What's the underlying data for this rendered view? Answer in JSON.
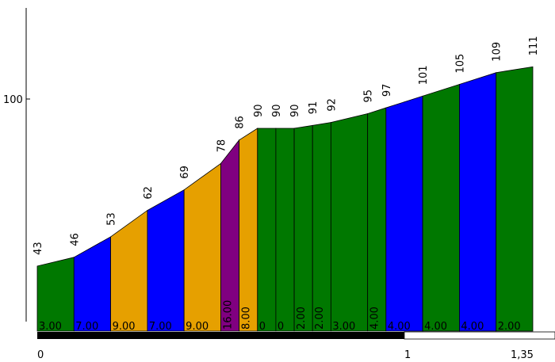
{
  "chart_data": {
    "type": "area",
    "x_start": 0,
    "x_end": 1.35,
    "y_tick": 100,
    "x_ticks": [
      {
        "value": 0,
        "label": "0"
      },
      {
        "value": 1,
        "label": "1"
      },
      {
        "value": 1.35,
        "label": "1,35"
      }
    ],
    "points": [
      {
        "x": 0.0,
        "y": 43,
        "label": "43"
      },
      {
        "x": 0.1,
        "y": 46,
        "label": "46"
      },
      {
        "x": 0.2,
        "y": 53,
        "label": "53"
      },
      {
        "x": 0.3,
        "y": 62,
        "label": "62"
      },
      {
        "x": 0.4,
        "y": 69,
        "label": "69"
      },
      {
        "x": 0.5,
        "y": 78,
        "label": "78"
      },
      {
        "x": 0.55,
        "y": 86,
        "label": "86"
      },
      {
        "x": 0.6,
        "y": 90,
        "label": "90"
      },
      {
        "x": 0.65,
        "y": 90,
        "label": "90"
      },
      {
        "x": 0.7,
        "y": 90,
        "label": "90"
      },
      {
        "x": 0.75,
        "y": 91,
        "label": "91"
      },
      {
        "x": 0.8,
        "y": 92,
        "label": "92"
      },
      {
        "x": 0.9,
        "y": 95,
        "label": "95"
      },
      {
        "x": 0.95,
        "y": 97,
        "label": "97"
      },
      {
        "x": 1.05,
        "y": 101,
        "label": "101"
      },
      {
        "x": 1.15,
        "y": 105,
        "label": "105"
      },
      {
        "x": 1.25,
        "y": 109,
        "label": "109"
      },
      {
        "x": 1.35,
        "y": 111,
        "label": "111"
      }
    ],
    "segments": [
      {
        "gradient": "3.00",
        "color": "#007800"
      },
      {
        "gradient": "7.00",
        "color": "#0000ff"
      },
      {
        "gradient": "9.00",
        "color": "#e6a000"
      },
      {
        "gradient": "7.00",
        "color": "#0000ff"
      },
      {
        "gradient": "9.00",
        "color": "#e6a000"
      },
      {
        "gradient": "16.00",
        "color": "#800080"
      },
      {
        "gradient": "8.00",
        "color": "#e6a000"
      },
      {
        "gradient": "0",
        "color": "#007800"
      },
      {
        "gradient": "0",
        "color": "#007800"
      },
      {
        "gradient": "2.00",
        "color": "#007800"
      },
      {
        "gradient": "2.00",
        "color": "#007800"
      },
      {
        "gradient": "3.00",
        "color": "#007800"
      },
      {
        "gradient": "4.00",
        "color": "#007800"
      },
      {
        "gradient": "4.00",
        "color": "#0000ff"
      },
      {
        "gradient": "4.00",
        "color": "#007800"
      },
      {
        "gradient": "4.00",
        "color": "#0000ff"
      },
      {
        "gradient": "2.00",
        "color": "#007800"
      }
    ],
    "distance_bar_end": 1
  }
}
